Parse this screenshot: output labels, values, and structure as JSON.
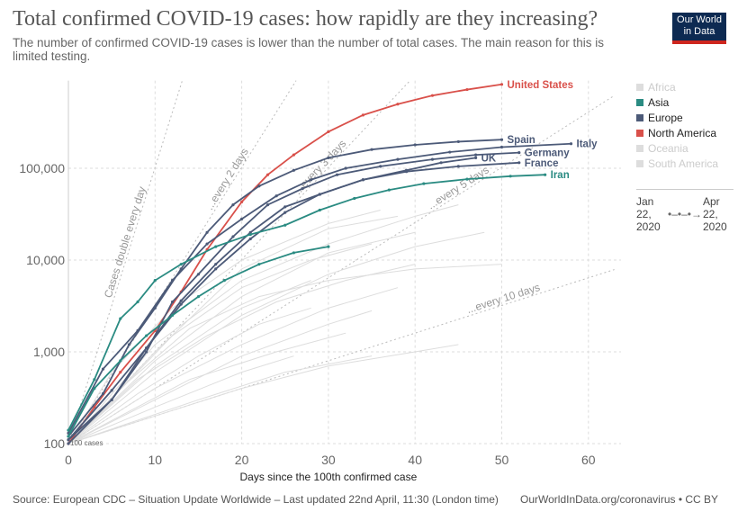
{
  "title": "Total confirmed COVID-19 cases: how rapidly are they increasing?",
  "subtitle": "The number of confirmed COVID-19 cases is lower than the number of total cases. The main reason for this is limited testing.",
  "logo": "Our World in Data",
  "source": "Source: European CDC – Situation Update Worldwide – Last updated 22nd April, 11:30 (London time)",
  "credit": "OurWorldInData.org/coronavirus • CC BY",
  "legend": [
    {
      "label": "Africa",
      "color": "#cccccc",
      "active": false
    },
    {
      "label": "Asia",
      "color": "#2a8b82",
      "active": true
    },
    {
      "label": "Europe",
      "color": "#4c5a78",
      "active": true
    },
    {
      "label": "North America",
      "color": "#d9504a",
      "active": true
    },
    {
      "label": "Oceania",
      "color": "#cccccc",
      "active": false
    },
    {
      "label": "South America",
      "color": "#cccccc",
      "active": false
    }
  ],
  "timeline": {
    "start": "Jan 22, 2020",
    "end": "Apr 22, 2020"
  },
  "chart_data": {
    "type": "line",
    "xlabel": "Days since the 100th confirmed case",
    "ylabel": "",
    "xlim": [
      0,
      63
    ],
    "ylim": [
      100,
      900000
    ],
    "yscale": "log",
    "xticks": [
      0,
      10,
      20,
      30,
      40,
      50,
      60
    ],
    "yticks": [
      {
        "v": 100,
        "label": "100"
      },
      {
        "v": 1000,
        "label": "1,000"
      },
      {
        "v": 10000,
        "label": "10,000"
      },
      {
        "v": 100000,
        "label": "100,000"
      }
    ],
    "start_label": "100 cases",
    "reference_lines": [
      {
        "label": "Cases double every day",
        "days": 1
      },
      {
        "label": "...every 2 days",
        "days": 2
      },
      {
        "label": "...every 3 days",
        "days": 3
      },
      {
        "label": "...every 5 days",
        "days": 5
      },
      {
        "label": "...every 10 days",
        "days": 10
      }
    ],
    "series": [
      {
        "name": "United States",
        "color": "#d9504a",
        "points": [
          [
            0,
            100
          ],
          [
            3,
            250
          ],
          [
            6,
            600
          ],
          [
            10,
            1700
          ],
          [
            13,
            4500
          ],
          [
            16,
            13000
          ],
          [
            20,
            43000
          ],
          [
            23,
            85000
          ],
          [
            26,
            140000
          ],
          [
            30,
            250000
          ],
          [
            34,
            380000
          ],
          [
            38,
            500000
          ],
          [
            42,
            620000
          ],
          [
            46,
            720000
          ],
          [
            50,
            820000
          ]
        ]
      },
      {
        "name": "Spain",
        "color": "#4c5a78",
        "points": [
          [
            0,
            120
          ],
          [
            4,
            350
          ],
          [
            7,
            1200
          ],
          [
            10,
            3000
          ],
          [
            13,
            8000
          ],
          [
            16,
            20000
          ],
          [
            19,
            40000
          ],
          [
            22,
            64000
          ],
          [
            26,
            95000
          ],
          [
            30,
            130000
          ],
          [
            35,
            160000
          ],
          [
            40,
            180000
          ],
          [
            45,
            195000
          ],
          [
            50,
            205000
          ]
        ]
      },
      {
        "name": "Italy",
        "color": "#4c5a78",
        "points": [
          [
            0,
            130
          ],
          [
            4,
            650
          ],
          [
            8,
            1700
          ],
          [
            12,
            6000
          ],
          [
            16,
            15000
          ],
          [
            20,
            28000
          ],
          [
            24,
            50000
          ],
          [
            28,
            75000
          ],
          [
            32,
            100000
          ],
          [
            38,
            125000
          ],
          [
            44,
            150000
          ],
          [
            50,
            170000
          ],
          [
            58,
            185000
          ]
        ]
      },
      {
        "name": "Germany",
        "color": "#4c5a78",
        "points": [
          [
            0,
            110
          ],
          [
            5,
            300
          ],
          [
            9,
            1000
          ],
          [
            12,
            3500
          ],
          [
            15,
            7000
          ],
          [
            19,
            18000
          ],
          [
            23,
            40000
          ],
          [
            27,
            60000
          ],
          [
            31,
            85000
          ],
          [
            36,
            105000
          ],
          [
            42,
            125000
          ],
          [
            47,
            140000
          ],
          [
            52,
            148000
          ]
        ]
      },
      {
        "name": "France",
        "color": "#4c5a78",
        "points": [
          [
            0,
            100
          ],
          [
            5,
            300
          ],
          [
            9,
            1100
          ],
          [
            13,
            3600
          ],
          [
            17,
            9000
          ],
          [
            21,
            20000
          ],
          [
            25,
            38000
          ],
          [
            29,
            52000
          ],
          [
            34,
            75000
          ],
          [
            39,
            92000
          ],
          [
            45,
            105000
          ],
          [
            52,
            115000
          ]
        ]
      },
      {
        "name": "UK",
        "color": "#4c5a78",
        "points": [
          [
            0,
            110
          ],
          [
            5,
            380
          ],
          [
            9,
            1100
          ],
          [
            13,
            3300
          ],
          [
            17,
            8000
          ],
          [
            21,
            17000
          ],
          [
            25,
            33000
          ],
          [
            29,
            52000
          ],
          [
            34,
            75000
          ],
          [
            39,
            95000
          ],
          [
            43,
            115000
          ],
          [
            47,
            130000
          ]
        ]
      },
      {
        "name": "Iran",
        "color": "#2a8b82",
        "points": [
          [
            0,
            140
          ],
          [
            3,
            500
          ],
          [
            6,
            2300
          ],
          [
            8,
            3500
          ],
          [
            10,
            6000
          ],
          [
            13,
            9000
          ],
          [
            17,
            14000
          ],
          [
            21,
            19000
          ],
          [
            25,
            24000
          ],
          [
            29,
            35000
          ],
          [
            33,
            47000
          ],
          [
            37,
            58000
          ],
          [
            41,
            68000
          ],
          [
            46,
            76000
          ],
          [
            51,
            82000
          ],
          [
            55,
            85000
          ]
        ]
      },
      {
        "name": "",
        "color": "#2a8b82",
        "points": [
          [
            0,
            120
          ],
          [
            3,
            400
          ],
          [
            6,
            800
          ],
          [
            9,
            1500
          ],
          [
            12,
            2500
          ],
          [
            15,
            4000
          ],
          [
            18,
            6000
          ],
          [
            22,
            9000
          ],
          [
            26,
            12000
          ],
          [
            30,
            14000
          ]
        ]
      }
    ],
    "background_series": [
      [
        [
          0,
          100
        ],
        [
          10,
          1200
        ],
        [
          20,
          6000
        ],
        [
          30,
          15000
        ],
        [
          40,
          30000
        ],
        [
          45,
          40000
        ]
      ],
      [
        [
          0,
          100
        ],
        [
          10,
          800
        ],
        [
          20,
          4000
        ],
        [
          30,
          12000
        ],
        [
          40,
          20000
        ]
      ],
      [
        [
          0,
          100
        ],
        [
          10,
          600
        ],
        [
          20,
          2500
        ],
        [
          30,
          7000
        ],
        [
          40,
          14000
        ],
        [
          48,
          20000
        ]
      ],
      [
        [
          0,
          100
        ],
        [
          8,
          500
        ],
        [
          16,
          1500
        ],
        [
          24,
          3500
        ],
        [
          32,
          6000
        ],
        [
          40,
          9000
        ]
      ],
      [
        [
          0,
          100
        ],
        [
          10,
          400
        ],
        [
          20,
          1200
        ],
        [
          30,
          3000
        ],
        [
          38,
          5000
        ]
      ],
      [
        [
          0,
          100
        ],
        [
          10,
          300
        ],
        [
          20,
          900
        ],
        [
          30,
          2000
        ],
        [
          35,
          2800
        ]
      ],
      [
        [
          0,
          100
        ],
        [
          6,
          200
        ],
        [
          14,
          500
        ],
        [
          24,
          1000
        ],
        [
          32,
          1600
        ]
      ],
      [
        [
          0,
          100
        ],
        [
          10,
          250
        ],
        [
          20,
          600
        ],
        [
          26,
          900
        ]
      ],
      [
        [
          0,
          100
        ],
        [
          12,
          1500
        ],
        [
          20,
          5000
        ],
        [
          28,
          10000
        ],
        [
          35,
          15000
        ]
      ],
      [
        [
          0,
          100
        ],
        [
          5,
          600
        ],
        [
          12,
          3000
        ],
        [
          20,
          10000
        ],
        [
          30,
          25000
        ],
        [
          36,
          35000
        ]
      ],
      [
        [
          0,
          100
        ],
        [
          8,
          350
        ],
        [
          15,
          900
        ],
        [
          22,
          2000
        ],
        [
          28,
          3000
        ]
      ],
      [
        [
          0,
          100
        ],
        [
          10,
          200
        ],
        [
          20,
          400
        ],
        [
          30,
          700
        ],
        [
          40,
          1000
        ],
        [
          45,
          1200
        ]
      ],
      [
        [
          0,
          100
        ],
        [
          6,
          400
        ],
        [
          14,
          1800
        ],
        [
          22,
          4000
        ],
        [
          30,
          6000
        ],
        [
          40,
          8000
        ],
        [
          50,
          9000
        ]
      ],
      [
        [
          0,
          100
        ],
        [
          10,
          700
        ],
        [
          20,
          3000
        ],
        [
          28,
          6000
        ]
      ],
      [
        [
          0,
          100
        ],
        [
          15,
          300
        ],
        [
          25,
          600
        ],
        [
          35,
          900
        ]
      ],
      [
        [
          0,
          100
        ],
        [
          10,
          1000
        ],
        [
          20,
          8000
        ],
        [
          30,
          22000
        ],
        [
          38,
          30000
        ]
      ]
    ]
  }
}
